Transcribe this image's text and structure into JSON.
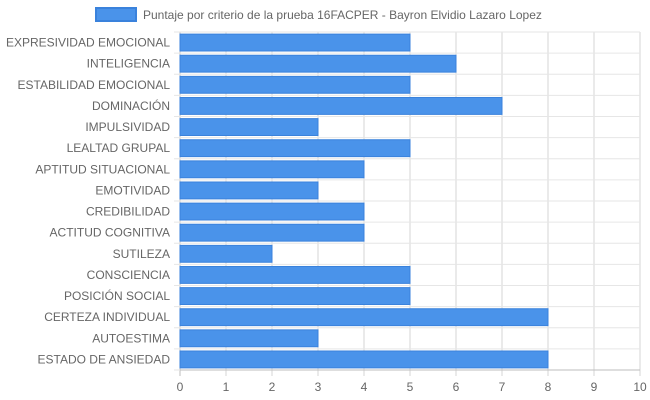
{
  "chart_data": {
    "type": "bar",
    "orientation": "horizontal",
    "categories": [
      "EXPRESIVIDAD EMOCIONAL",
      "INTELIGENCIA",
      "ESTABILIDAD EMOCIONAL",
      "DOMINACIÓN",
      "IMPULSIVIDAD",
      "LEALTAD GRUPAL",
      "APTITUD SITUACIONAL",
      "EMOTIVIDAD",
      "CREDIBILIDAD",
      "ACTITUD COGNITIVA",
      "SUTILEZA",
      "CONSCIENCIA",
      "POSICIÓN SOCIAL",
      "CERTEZA INDIVIDUAL",
      "AUTOESTIMA",
      "ESTADO DE ANSIEDAD"
    ],
    "series": [
      {
        "name": "Puntaje por criterio de la prueba 16FACPER - Bayron Elvidio Lazaro Lopez",
        "values": [
          5,
          6,
          5,
          7,
          3,
          5,
          4,
          3,
          4,
          4,
          2,
          5,
          5,
          8,
          3,
          8
        ],
        "color": "#4a93ea",
        "border_color": "#3a82dc"
      }
    ],
    "xlim": [
      0,
      10
    ],
    "x_ticks": [
      "0",
      "1",
      "2",
      "3",
      "4",
      "5",
      "6",
      "7",
      "8",
      "9",
      "10"
    ],
    "grid": true,
    "legend_position": "top"
  }
}
